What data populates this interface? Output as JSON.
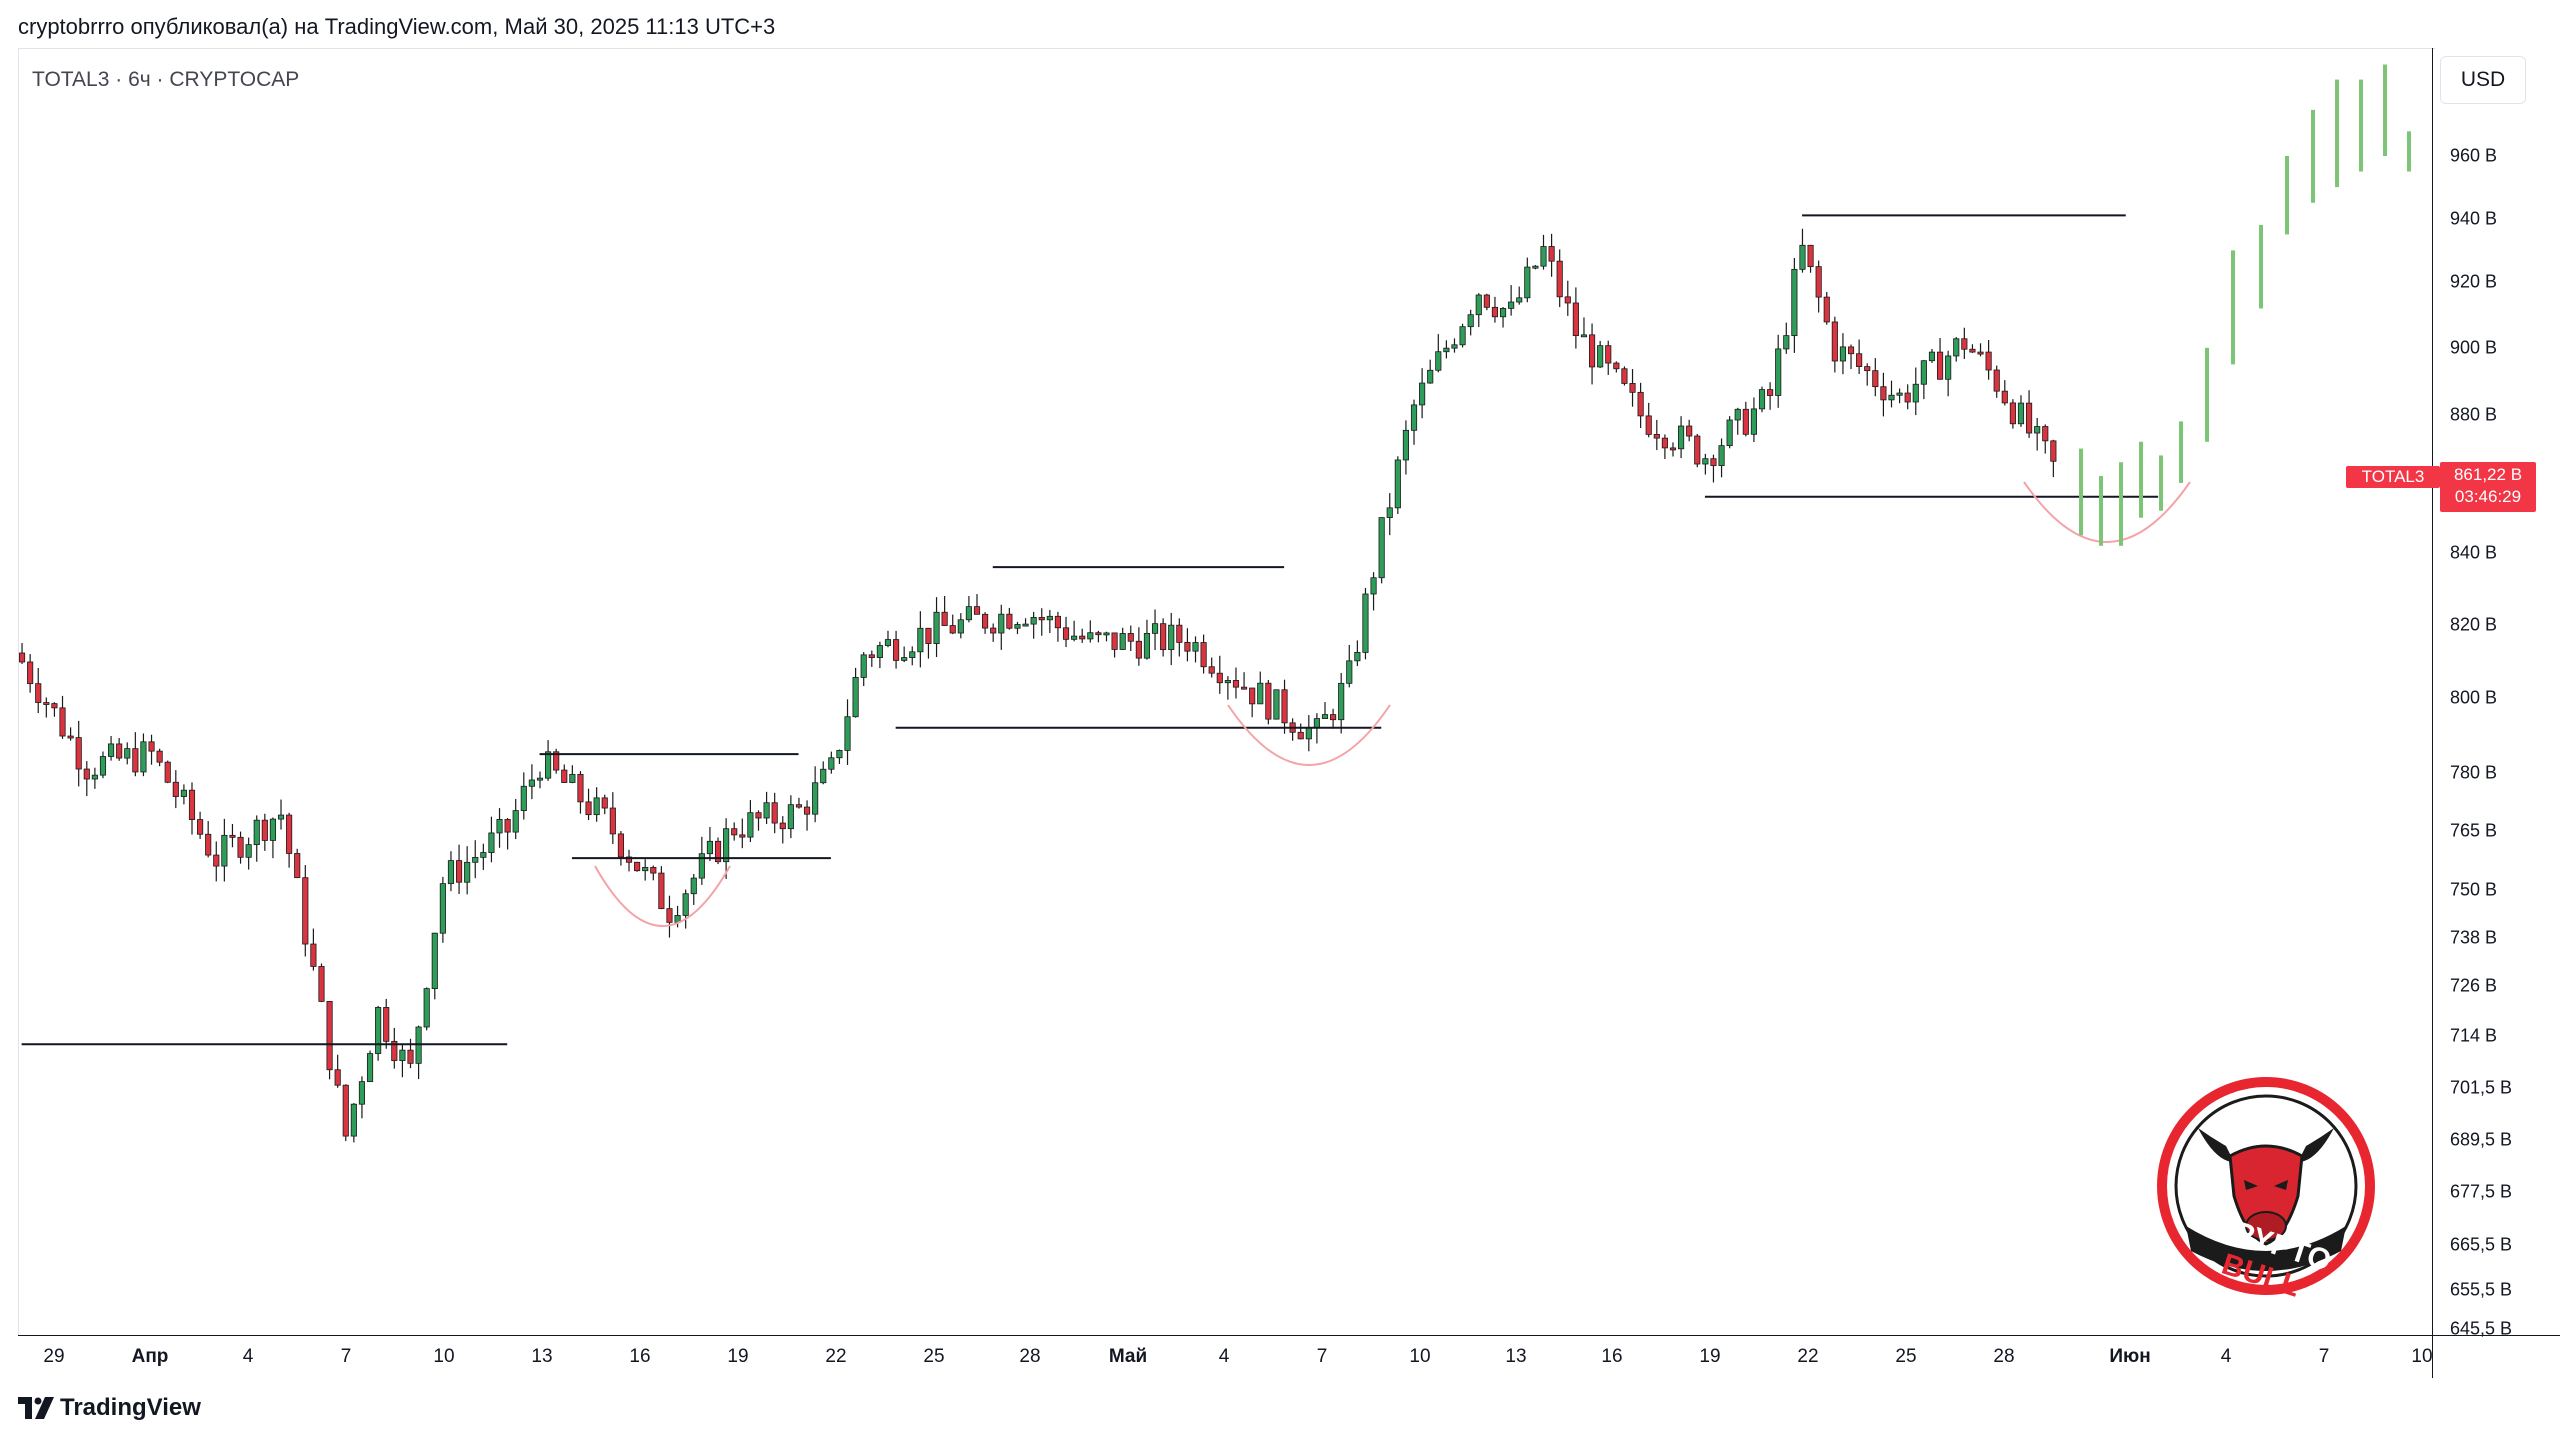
{
  "header": {
    "text": "cryptobrrro опубликовал(а) на TradingView.com, Май 30, 2025 11:13 UTC+3"
  },
  "symbol_label": "TOTAL3 · 6ч · CRYPTOCAP",
  "currency_button": "USD",
  "current_price": {
    "symbol": "TOTAL3",
    "value": "861,22 B",
    "countdown": "03:46:29"
  },
  "footer": {
    "brand": "TradingView"
  },
  "logo": {
    "text_top": "CRYPTO",
    "text_bottom": "BULL",
    "icon": "bull-head-icon"
  },
  "colors": {
    "up": "#089981",
    "down": "#f23645",
    "forecast": "#66bb6a",
    "arc": "#f4a3a8"
  },
  "chart_data": {
    "type": "candlestick",
    "title": "",
    "x_axis_labels": [
      "29",
      "Апр",
      "4",
      "7",
      "10",
      "13",
      "16",
      "19",
      "22",
      "25",
      "28",
      "Май",
      "4",
      "7",
      "10",
      "13",
      "16",
      "19",
      "22",
      "25",
      "28",
      "Июн",
      "4",
      "7",
      "10"
    ],
    "y_axis_labels": [
      "960 B",
      "940 B",
      "920 B",
      "900 B",
      "880 B",
      "840 B",
      "820 B",
      "800 B",
      "780 B",
      "765 B",
      "750 B",
      "738 B",
      "726 B",
      "714 B",
      "701,5 B",
      "689,5 B",
      "677,5 B",
      "665,5 B",
      "655,5 B",
      "645,5 B"
    ],
    "y_unit": "B",
    "price_scale": "log",
    "ylim": [
      645,
      985
    ],
    "last_price": 861.22,
    "close_path_key_points": [
      {
        "date": "2025-03-28",
        "close": 810
      },
      {
        "date": "2025-03-30",
        "close": 782
      },
      {
        "date": "2025-04-01",
        "close": 785
      },
      {
        "date": "2025-04-03",
        "close": 758
      },
      {
        "date": "2025-04-05",
        "close": 770
      },
      {
        "date": "2025-04-07",
        "close": 690
      },
      {
        "date": "2025-04-08",
        "close": 720
      },
      {
        "date": "2025-04-09",
        "close": 705
      },
      {
        "date": "2025-04-10",
        "close": 752
      },
      {
        "date": "2025-04-12",
        "close": 765
      },
      {
        "date": "2025-04-13",
        "close": 783
      },
      {
        "date": "2025-04-15",
        "close": 768
      },
      {
        "date": "2025-04-17",
        "close": 745
      },
      {
        "date": "2025-04-19",
        "close": 766
      },
      {
        "date": "2025-04-21",
        "close": 770
      },
      {
        "date": "2025-04-22",
        "close": 780
      },
      {
        "date": "2025-04-23",
        "close": 812
      },
      {
        "date": "2025-04-25",
        "close": 818
      },
      {
        "date": "2025-04-28",
        "close": 824
      },
      {
        "date": "2025-04-30",
        "close": 815
      },
      {
        "date": "2025-05-03",
        "close": 816
      },
      {
        "date": "2025-05-05",
        "close": 802
      },
      {
        "date": "2025-05-07",
        "close": 790
      },
      {
        "date": "2025-05-08",
        "close": 805
      },
      {
        "date": "2025-05-09",
        "close": 845
      },
      {
        "date": "2025-05-10",
        "close": 882
      },
      {
        "date": "2025-05-12",
        "close": 918
      },
      {
        "date": "2025-05-13",
        "close": 910
      },
      {
        "date": "2025-05-14",
        "close": 930
      },
      {
        "date": "2025-05-15",
        "close": 905
      },
      {
        "date": "2025-05-17",
        "close": 880
      },
      {
        "date": "2025-05-19",
        "close": 868
      },
      {
        "date": "2025-05-21",
        "close": 885
      },
      {
        "date": "2025-05-22",
        "close": 930
      },
      {
        "date": "2025-05-23",
        "close": 900
      },
      {
        "date": "2025-05-25",
        "close": 885
      },
      {
        "date": "2025-05-27",
        "close": 902
      },
      {
        "date": "2025-05-28",
        "close": 890
      },
      {
        "date": "2025-05-29",
        "close": 875
      },
      {
        "date": "2025-05-30",
        "close": 861.22
      }
    ],
    "annotations": {
      "horizontal_lines": [
        {
          "price": 712,
          "from": "2025-03-28",
          "to": "2025-04-12"
        },
        {
          "price": 785,
          "from": "2025-04-13",
          "to": "2025-04-21"
        },
        {
          "price": 758,
          "from": "2025-04-14",
          "to": "2025-04-22"
        },
        {
          "price": 836,
          "from": "2025-04-27",
          "to": "2025-05-06"
        },
        {
          "price": 792,
          "from": "2025-04-24",
          "to": "2025-05-09"
        },
        {
          "price": 941,
          "from": "2025-05-22",
          "to": "2025-06-01"
        },
        {
          "price": 856,
          "from": "2025-05-19",
          "to": "2025-06-02"
        }
      ],
      "rounded_bottoms": 3,
      "forecast_direction": "up"
    }
  }
}
